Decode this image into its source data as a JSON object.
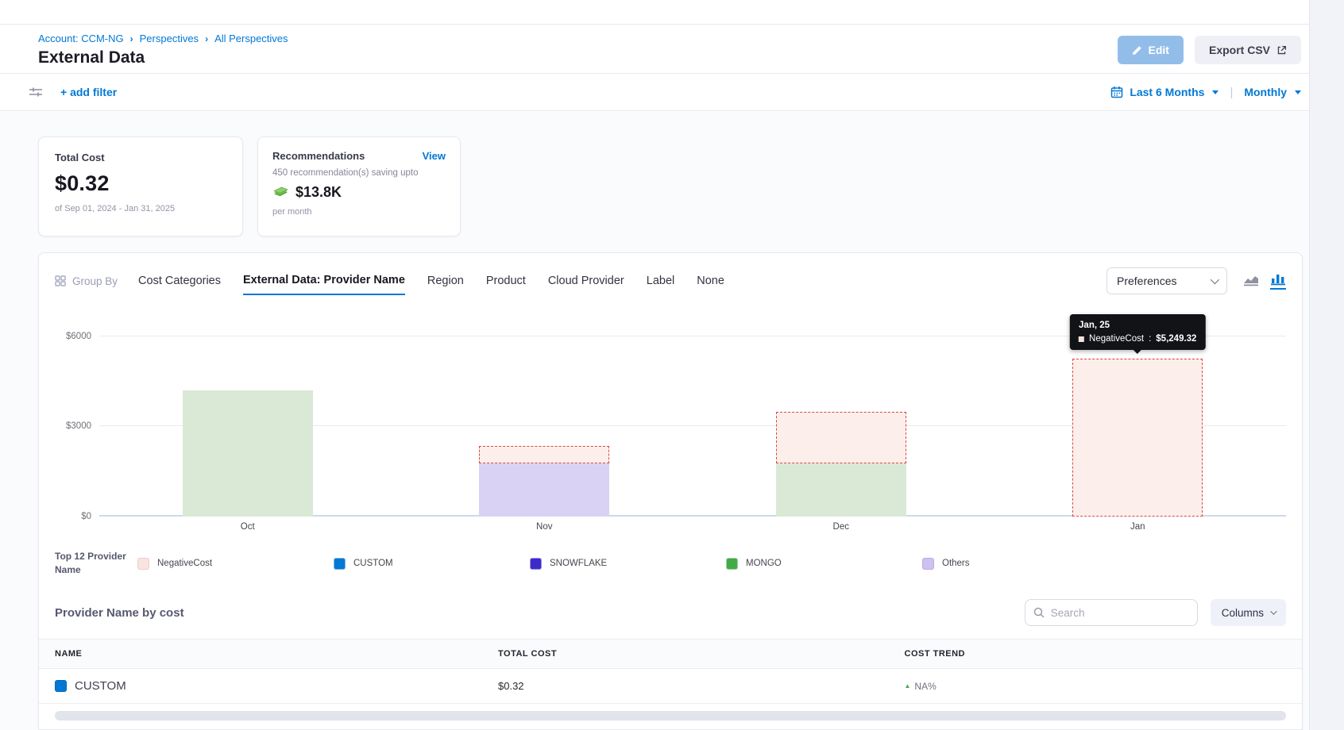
{
  "header": {
    "breadcrumb": [
      "Account: CCM-NG",
      "Perspectives",
      "All Perspectives"
    ],
    "title": "External Data",
    "edit_label": "Edit",
    "export_label": "Export CSV"
  },
  "filter_bar": {
    "add_filter_label": "+ add filter",
    "date_range_label": "Last 6 Months",
    "granularity_label": "Monthly"
  },
  "summary_cards": {
    "total_cost": {
      "title": "Total Cost",
      "value": "$0.32",
      "period": "of Sep 01, 2024 - Jan 31, 2025"
    },
    "recommendations": {
      "title": "Recommendations",
      "view_label": "View",
      "subtitle": "450 recommendation(s) saving upto",
      "amount": "$13.8K",
      "cadence": "per month"
    }
  },
  "group_by": {
    "label": "Group By",
    "tabs": [
      {
        "label": "Cost Categories",
        "active": false
      },
      {
        "label": "External Data: Provider Name",
        "active": true
      },
      {
        "label": "Region",
        "active": false
      },
      {
        "label": "Product",
        "active": false
      },
      {
        "label": "Cloud Provider",
        "active": false
      },
      {
        "label": "Label",
        "active": false
      },
      {
        "label": "None",
        "active": false
      }
    ],
    "preferences_label": "Preferences"
  },
  "chart_data": {
    "type": "bar",
    "stacked": true,
    "categories": [
      "Oct",
      "Nov",
      "Dec",
      "Jan"
    ],
    "series": [
      {
        "name": "MONGO",
        "values": [
          4200,
          0,
          1760,
          0
        ],
        "fill": "#d9e9d6"
      },
      {
        "name": "Others",
        "values": [
          0,
          1760,
          0,
          0
        ],
        "fill": "#d9d2f4"
      },
      {
        "name": "NegativeCost",
        "values": [
          0,
          580,
          1715,
          5249.32
        ],
        "fill": "#fcefeb",
        "border_color": "#e0453e",
        "border_style": "dashed"
      }
    ],
    "y_ticks": [
      {
        "label": "$0",
        "value": 0
      },
      {
        "label": "$3000",
        "value": 3000
      },
      {
        "label": "$6000",
        "value": 6000
      }
    ],
    "y_max": 6600,
    "legend_position": "bottom",
    "grid": true,
    "tooltip": {
      "category_index": 3,
      "title": "Jan, 25",
      "series_label": "NegativeCost",
      "separator": ":",
      "value": "$5,249.32",
      "swatch_color": "#f6e3df"
    }
  },
  "legend": {
    "title": "Top 12 Provider Name",
    "items": [
      {
        "label": "NegativeCost",
        "color": "#f9e4e1",
        "border": "#ecccc7"
      },
      {
        "label": "CUSTOM",
        "color": "#0278d5",
        "border": "#7db4e0"
      },
      {
        "label": "SNOWFLAKE",
        "color": "#3d2bc9",
        "border": "#9a90e0"
      },
      {
        "label": "MONGO",
        "color": "#42ab45",
        "border": "#9ed3a0"
      },
      {
        "label": "Others",
        "color": "#cdc1f0",
        "border": "#b9aae8"
      }
    ]
  },
  "table": {
    "title": "Provider Name by cost",
    "search_placeholder": "Search",
    "columns_label": "Columns",
    "headers": [
      "NAME",
      "TOTAL COST",
      "COST TREND"
    ],
    "rows": [
      {
        "name": "CUSTOM",
        "swatch": "#0278d5",
        "total_cost": "$0.32",
        "trend": "NA%",
        "trend_direction": "up"
      }
    ]
  },
  "colors": {
    "accent_blue": "#0278d5",
    "edit_button_bg": "#93bde9",
    "negative_border": "#e0453e",
    "trend_up_green": "#42ab45"
  }
}
